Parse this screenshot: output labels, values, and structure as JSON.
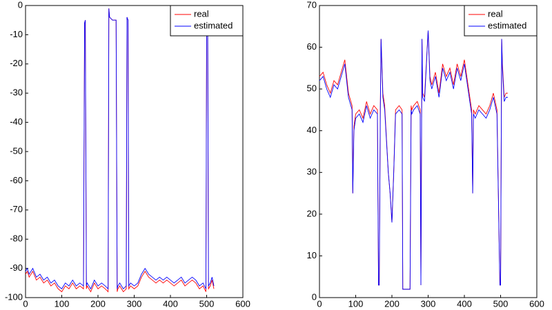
{
  "chart_data": [
    {
      "type": "line",
      "legend": "northeast",
      "grid": false,
      "xlim": [
        0,
        600
      ],
      "xticks": [
        0,
        100,
        200,
        300,
        400,
        500,
        600
      ],
      "ylim": [
        -100,
        0
      ],
      "yticks": [
        -100,
        -90,
        -80,
        -70,
        -60,
        -50,
        -40,
        -30,
        -20,
        -10,
        0
      ],
      "x": [
        0,
        5,
        10,
        20,
        30,
        40,
        50,
        60,
        70,
        80,
        90,
        100,
        110,
        120,
        130,
        140,
        150,
        160,
        163,
        165,
        168,
        170,
        180,
        190,
        200,
        210,
        220,
        228,
        230,
        232,
        240,
        250,
        253,
        255,
        260,
        270,
        278,
        280,
        283,
        285,
        290,
        300,
        310,
        320,
        330,
        340,
        350,
        360,
        370,
        380,
        390,
        400,
        410,
        420,
        430,
        440,
        450,
        460,
        470,
        480,
        490,
        498,
        500,
        503,
        505,
        510,
        515,
        520
      ],
      "series": [
        {
          "name": "real",
          "color": "#ff0000",
          "values": [
            -92,
            -91,
            -93,
            -91,
            -94,
            -93,
            -95,
            -94,
            -96,
            -95,
            -97,
            -98,
            -96,
            -97,
            -95,
            -97,
            -96,
            -97,
            -6,
            -5,
            -97,
            -96,
            -98,
            -95,
            -97,
            -96,
            -97,
            -98,
            -1,
            -4,
            -5,
            -5,
            -98,
            -97,
            -96,
            -98,
            -97,
            -4,
            -5,
            -97,
            -96,
            -97,
            -96,
            -93,
            -91,
            -93,
            -94,
            -95,
            -94,
            -95,
            -94,
            -95,
            -96,
            -95,
            -94,
            -96,
            -95,
            -94,
            -95,
            -97,
            -96,
            -98,
            -8,
            -9,
            -97,
            -96,
            -94,
            -97
          ]
        },
        {
          "name": "estimated",
          "color": "#0000ff",
          "values": [
            -91,
            -90,
            -92,
            -90,
            -93,
            -92,
            -94,
            -93,
            -95,
            -94,
            -96,
            -97,
            -95,
            -96,
            -94,
            -96,
            -95,
            -96,
            -6,
            -5,
            -96,
            -95,
            -97,
            -94,
            -96,
            -95,
            -96,
            -97,
            -1,
            -4,
            -5,
            -5,
            -97,
            -96,
            -95,
            -97,
            -96,
            -4,
            -5,
            -96,
            -95,
            -96,
            -95,
            -92,
            -90,
            -92,
            -93,
            -94,
            -93,
            -94,
            -93,
            -94,
            -95,
            -94,
            -93,
            -95,
            -94,
            -93,
            -94,
            -96,
            -95,
            -97,
            -8,
            -9,
            -96,
            -95,
            -93,
            -96
          ]
        }
      ]
    },
    {
      "type": "line",
      "legend": "northeast",
      "grid": false,
      "xlim": [
        0,
        600
      ],
      "xticks": [
        0,
        100,
        200,
        300,
        400,
        500,
        600
      ],
      "ylim": [
        0,
        70
      ],
      "yticks": [
        0,
        10,
        20,
        30,
        40,
        50,
        60,
        70
      ],
      "x": [
        0,
        10,
        20,
        30,
        40,
        50,
        60,
        70,
        80,
        90,
        92,
        95,
        100,
        110,
        120,
        130,
        140,
        150,
        160,
        163,
        165,
        168,
        170,
        175,
        180,
        190,
        195,
        200,
        205,
        210,
        220,
        228,
        230,
        232,
        240,
        250,
        253,
        255,
        260,
        270,
        278,
        280,
        283,
        285,
        290,
        300,
        305,
        310,
        320,
        330,
        340,
        350,
        360,
        370,
        380,
        390,
        400,
        410,
        420,
        423,
        425,
        430,
        440,
        450,
        460,
        470,
        480,
        490,
        498,
        500,
        503,
        505,
        510,
        515,
        520
      ],
      "series": [
        {
          "name": "real",
          "color": "#ff0000",
          "values": [
            53,
            54,
            51,
            49,
            52,
            51,
            54,
            57,
            49,
            46,
            25,
            41,
            44,
            45,
            43,
            47,
            44,
            46,
            45,
            3,
            3,
            46,
            62,
            49,
            46,
            30,
            25,
            18,
            30,
            45,
            46,
            45,
            2,
            2,
            2,
            2,
            46,
            45,
            46,
            47,
            45,
            3,
            62,
            49,
            48,
            64,
            53,
            51,
            54,
            49,
            56,
            53,
            55,
            51,
            56,
            53,
            57,
            51,
            45,
            25,
            45,
            44,
            46,
            45,
            44,
            46,
            49,
            45,
            3,
            3,
            62,
            56,
            48,
            49,
            49
          ]
        },
        {
          "name": "estimated",
          "color": "#0000ff",
          "values": [
            52,
            53,
            50,
            48,
            51,
            50,
            53,
            56,
            48,
            45,
            25,
            40,
            43,
            44,
            42,
            46,
            43,
            45,
            44,
            3,
            3,
            45,
            62,
            48,
            45,
            30,
            25,
            18,
            30,
            44,
            45,
            44,
            2,
            2,
            2,
            2,
            45,
            44,
            45,
            46,
            44,
            3,
            62,
            48,
            47,
            64,
            52,
            50,
            53,
            48,
            55,
            52,
            54,
            50,
            55,
            52,
            56,
            50,
            44,
            25,
            44,
            43,
            45,
            44,
            43,
            45,
            48,
            44,
            3,
            3,
            62,
            55,
            47,
            48,
            48
          ]
        }
      ]
    }
  ]
}
